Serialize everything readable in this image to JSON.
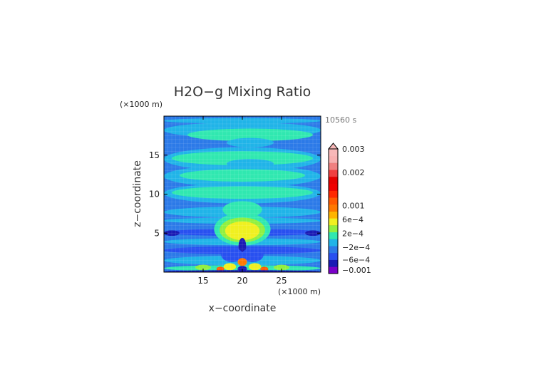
{
  "chart_data": {
    "type": "heatmap",
    "title": "H2O−g Mixing Ratio",
    "time_label": "10560 s",
    "xlabel": "x−coordinate",
    "ylabel": "z−coordinate",
    "x_unit_label": "(×1000 m)",
    "y_unit_label": "(×1000 m)",
    "xlim": [
      10,
      30
    ],
    "ylim": [
      0,
      20
    ],
    "x_ticks": [
      {
        "value": 15,
        "label": "15"
      },
      {
        "value": 20,
        "label": "20"
      },
      {
        "value": 25,
        "label": "25"
      }
    ],
    "y_ticks": [
      {
        "value": 5,
        "label": "5"
      },
      {
        "value": 10,
        "label": "10"
      },
      {
        "value": 15,
        "label": "15"
      }
    ],
    "colorbar": {
      "levels": [
        {
          "color": "#7a00c8"
        },
        {
          "color": "#1a1ab4"
        },
        {
          "color": "#2850f0"
        },
        {
          "color": "#2c7ae8"
        },
        {
          "color": "#20b4e8"
        },
        {
          "color": "#30e8b0"
        },
        {
          "color": "#90f040"
        },
        {
          "color": "#f0f020"
        },
        {
          "color": "#ffb400"
        },
        {
          "color": "#ff7800"
        },
        {
          "color": "#ff5a00"
        },
        {
          "color": "#ff2800"
        },
        {
          "color": "#f00000"
        },
        {
          "color": "#e60000"
        },
        {
          "color": "#f04040"
        },
        {
          "color": "#f08080"
        },
        {
          "color": "#f8b0b0"
        },
        {
          "color": "#f8b8b8"
        }
      ],
      "labels": [
        {
          "level": 0.5,
          "text": "−0.001"
        },
        {
          "level": 2,
          "text": "−6e−4"
        },
        {
          "level": 3.8,
          "text": "−2e−4"
        },
        {
          "level": 5.8,
          "text": "2e−4"
        },
        {
          "level": 7.8,
          "text": "6e−4"
        },
        {
          "level": 9.8,
          "text": "0.001"
        },
        {
          "level": 14.6,
          "text": "0.002"
        },
        {
          "level": 18,
          "text": "0.003"
        }
      ]
    },
    "field": {
      "background_color": "#2c7ae8",
      "bands": [
        {
          "z": 19.4,
          "x0": 10,
          "x1": 30,
          "h": 0.7,
          "color": "#20b4e8"
        },
        {
          "z": 18.2,
          "x0": 10,
          "x1": 30,
          "h": 2.0,
          "color": "#20b4e8"
        },
        {
          "z": 17.6,
          "x0": 13,
          "x1": 29,
          "h": 1.6,
          "color": "#30e8b0"
        },
        {
          "z": 16.6,
          "x0": 18,
          "x1": 24,
          "h": 1.2,
          "color": "#20b4e8"
        },
        {
          "z": 14.5,
          "x0": 10,
          "x1": 30,
          "h": 3.0,
          "color": "#20b4e8"
        },
        {
          "z": 14.6,
          "x0": 11,
          "x1": 29,
          "h": 1.8,
          "color": "#30e8b0"
        },
        {
          "z": 13.9,
          "x0": 18,
          "x1": 24,
          "h": 1.2,
          "color": "#20b4e8"
        },
        {
          "z": 12.3,
          "x0": 10,
          "x1": 30,
          "h": 2.8,
          "color": "#20b4e8"
        },
        {
          "z": 12.4,
          "x0": 12,
          "x1": 28,
          "h": 1.6,
          "color": "#30e8b0"
        },
        {
          "z": 10.1,
          "x0": 10,
          "x1": 30,
          "h": 2.6,
          "color": "#20b4e8"
        },
        {
          "z": 10.2,
          "x0": 11,
          "x1": 29,
          "h": 1.6,
          "color": "#30e8b0"
        },
        {
          "z": 7.7,
          "x0": 10,
          "x1": 30,
          "h": 1.4,
          "color": "#20b4e8"
        },
        {
          "z": 8.0,
          "x0": 17.5,
          "x1": 22.5,
          "h": 2.2,
          "color": "#30e8b0"
        },
        {
          "z": 6.6,
          "x0": 10,
          "x1": 30,
          "h": 0.8,
          "color": "#20b4e8"
        },
        {
          "z": 5.1,
          "x0": 10,
          "x1": 30,
          "h": 0.9,
          "color": "#2850f0"
        },
        {
          "z": 5.0,
          "x0": 10,
          "x1": 12,
          "h": 0.7,
          "color": "#1a1ab4"
        },
        {
          "z": 5.0,
          "x0": 28,
          "x1": 30,
          "h": 0.7,
          "color": "#1a1ab4"
        },
        {
          "z": 3.9,
          "x0": 10,
          "x1": 30,
          "h": 0.9,
          "color": "#20b4e8"
        },
        {
          "z": 2.8,
          "x0": 10,
          "x1": 30,
          "h": 1.0,
          "color": "#2850f0"
        },
        {
          "z": 1.5,
          "x0": 10,
          "x1": 30,
          "h": 1.2,
          "color": "#20b4e8"
        },
        {
          "z": 0.5,
          "x0": 10,
          "x1": 30,
          "h": 0.8,
          "color": "#30e8b0"
        }
      ],
      "blobs": [
        {
          "x": 20,
          "z": 5.5,
          "rx": 3.6,
          "rz": 2.1,
          "color": "#30e8b0"
        },
        {
          "x": 20,
          "z": 5.4,
          "rx": 2.9,
          "rz": 1.6,
          "color": "#90f040"
        },
        {
          "x": 20,
          "z": 5.3,
          "rx": 2.2,
          "rz": 1.2,
          "color": "#f0f020"
        },
        {
          "x": 20,
          "z": 3.2,
          "rx": 0.5,
          "rz": 1.2,
          "color": "#1a1ab4"
        },
        {
          "x": 18.7,
          "z": 2.2,
          "rx": 1.4,
          "rz": 0.9,
          "color": "#2850f0"
        },
        {
          "x": 21.3,
          "z": 2.2,
          "rx": 1.4,
          "rz": 0.9,
          "color": "#2850f0"
        },
        {
          "x": 20,
          "z": 1.3,
          "rx": 0.6,
          "rz": 0.5,
          "color": "#ff7800"
        },
        {
          "x": 18.4,
          "z": 0.7,
          "rx": 0.8,
          "rz": 0.45,
          "color": "#f0f020"
        },
        {
          "x": 21.6,
          "z": 0.7,
          "rx": 0.8,
          "rz": 0.45,
          "color": "#f0f020"
        },
        {
          "x": 20,
          "z": 0.4,
          "rx": 0.6,
          "rz": 0.4,
          "color": "#1a1ab4"
        },
        {
          "x": 17.2,
          "z": 0.4,
          "rx": 0.5,
          "rz": 0.3,
          "color": "#ff5a00"
        },
        {
          "x": 22.8,
          "z": 0.4,
          "rx": 0.5,
          "rz": 0.3,
          "color": "#ff5a00"
        },
        {
          "x": 15,
          "z": 0.6,
          "rx": 1.0,
          "rz": 0.35,
          "color": "#90f040"
        },
        {
          "x": 25,
          "z": 0.6,
          "rx": 1.0,
          "rz": 0.35,
          "color": "#90f040"
        },
        {
          "x": 20,
          "z": 0.1,
          "rx": 10,
          "rz": 0.15,
          "color": "#1a1ab4"
        }
      ]
    }
  }
}
